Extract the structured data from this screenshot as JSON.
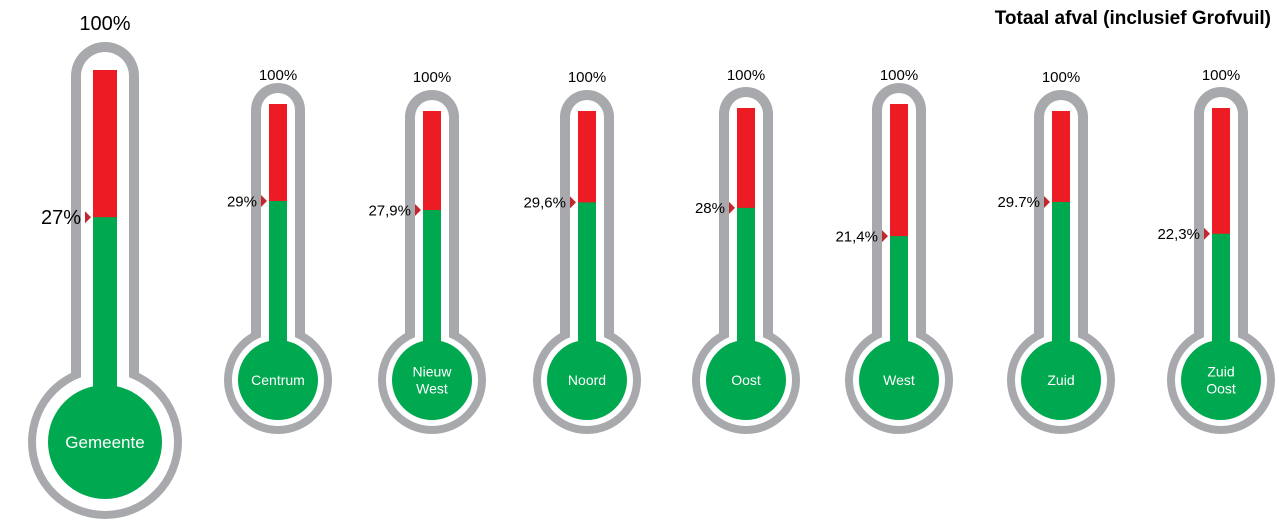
{
  "title": "Totaal afval (inclusief Grofvuil)",
  "chart_data": {
    "type": "thermometer",
    "title": "Totaal afval (inclusief Grofvuil)",
    "max_label": "100%",
    "colors": {
      "filled": "#00a84f",
      "remaining": "#ed1c24",
      "outline": "#a7a9ac",
      "marker": "#c1272d"
    },
    "items": [
      {
        "name": "Gemeente",
        "name_lines": [
          "Gemeente"
        ],
        "value": 27.0,
        "label": "27%"
      },
      {
        "name": "Centrum",
        "name_lines": [
          "Centrum"
        ],
        "value": 29.0,
        "label": "29%"
      },
      {
        "name": "Nieuw West",
        "name_lines": [
          "Nieuw",
          "West"
        ],
        "value": 27.9,
        "label": "27,9%"
      },
      {
        "name": "Noord",
        "name_lines": [
          "Noord"
        ],
        "value": 29.6,
        "label": "29,6%"
      },
      {
        "name": "Oost",
        "name_lines": [
          "Oost"
        ],
        "value": 28.0,
        "label": "28%"
      },
      {
        "name": "West",
        "name_lines": [
          "West"
        ],
        "value": 21.4,
        "label": "21,4%"
      },
      {
        "name": "Zuid",
        "name_lines": [
          "Zuid"
        ],
        "value": 29.7,
        "label": "29.7%"
      },
      {
        "name": "Zuid Oost",
        "name_lines": [
          "Zuid",
          "Oost"
        ],
        "value": 22.3,
        "label": "22,3%"
      }
    ]
  }
}
